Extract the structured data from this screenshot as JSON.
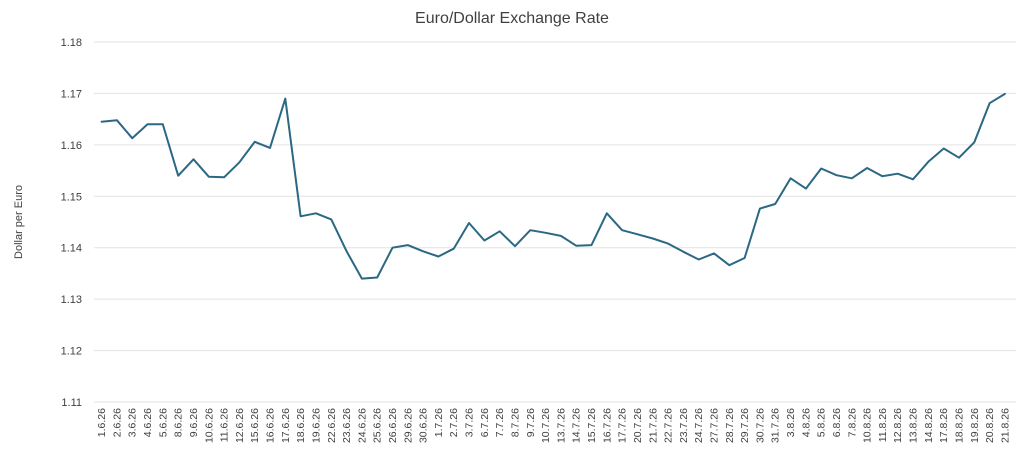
{
  "chart_data": {
    "type": "line",
    "title": "Euro/Dollar Exchange Rate",
    "xlabel": "",
    "ylabel": "Dollar per Euro",
    "ylim": [
      1.11,
      1.18
    ],
    "yticks": [
      "1.11",
      "1.12",
      "1.13",
      "1.14",
      "1.15",
      "1.16",
      "1.17",
      "1.18"
    ],
    "grid": true,
    "legend": "none",
    "line_color": "#2a6883",
    "categories": [
      "1.6.26",
      "2.6.26",
      "3.6.26",
      "4.6.26",
      "5.6.26",
      "8.6.26",
      "9.6.26",
      "10.6.26",
      "11.6.26",
      "12.6.26",
      "15.6.26",
      "16.6.26",
      "17.6.26",
      "18.6.26",
      "19.6.26",
      "22.6.26",
      "23.6.26",
      "24.6.26",
      "25.6.26",
      "26.6.26",
      "29.6.26",
      "30.6.26",
      "1.7.26",
      "2.7.26",
      "3.7.26",
      "6.7.26",
      "7.7.26",
      "8.7.26",
      "9.7.26",
      "10.7.26",
      "13.7.26",
      "14.7.26",
      "15.7.26",
      "16.7.26",
      "17.7.26",
      "20.7.26",
      "21.7.26",
      "22.7.26",
      "23.7.26",
      "24.7.26",
      "27.7.26",
      "28.7.26",
      "29.7.26",
      "30.7.26",
      "31.7.26",
      "3.8.26",
      "4.8.26",
      "5.8.26",
      "6.8.26",
      "7.8.26",
      "10.8.26",
      "11.8.26",
      "12.8.26",
      "13.8.26",
      "14.8.26",
      "17.8.26",
      "18.8.26",
      "19.8.26",
      "20.8.26",
      "21.8.26"
    ],
    "series": [
      {
        "values": [
          1.1645,
          1.1648,
          1.1613,
          1.164,
          1.164,
          1.154,
          1.1572,
          1.1538,
          1.1537,
          1.1566,
          1.1606,
          1.1594,
          1.169,
          1.1461,
          1.1467,
          1.1455,
          1.1393,
          1.134,
          1.1342,
          1.14,
          1.1405,
          1.1393,
          1.1383,
          1.1398,
          1.1448,
          1.1414,
          1.1432,
          1.1403,
          1.1434,
          1.1429,
          1.1423,
          1.1404,
          1.1405,
          1.1467,
          1.1434,
          1.1426,
          1.1418,
          1.1408,
          1.1392,
          1.1377,
          1.1389,
          1.1366,
          1.138,
          1.1476,
          1.1485,
          1.1535,
          1.1515,
          1.1554,
          1.1541,
          1.1535,
          1.1555,
          1.1539,
          1.1544,
          1.1533,
          1.1567,
          1.1593,
          1.1575,
          1.1605,
          1.1681,
          1.1699
        ]
      }
    ]
  }
}
